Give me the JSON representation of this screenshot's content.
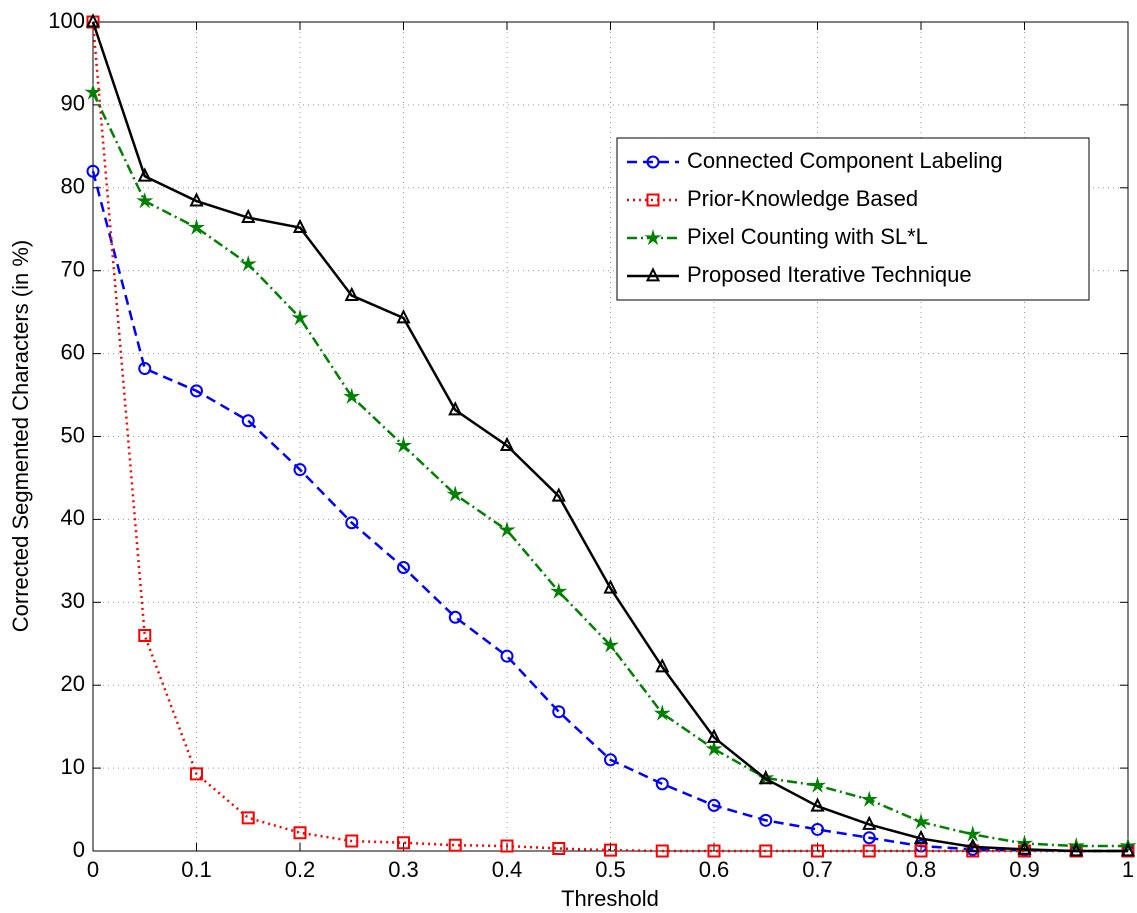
{
  "chart_data": {
    "type": "line",
    "xlabel": "Threshold",
    "ylabel": "Corrected Segmented Characters (in %)",
    "x": [
      0,
      0.05,
      0.1,
      0.15,
      0.2,
      0.25,
      0.3,
      0.35,
      0.4,
      0.45,
      0.5,
      0.55,
      0.6,
      0.65,
      0.7,
      0.75,
      0.8,
      0.85,
      0.9,
      0.95,
      1
    ],
    "series": [
      {
        "name": "Connected Component Labeling",
        "color": "#0000ff",
        "marker": "circle",
        "dash": "dashed",
        "values": [
          82,
          58.2,
          55.5,
          51.9,
          46,
          39.6,
          34.2,
          28.2,
          23.5,
          16.8,
          11,
          8.1,
          5.5,
          3.7,
          2.6,
          1.6,
          0.6,
          0.2,
          0.1,
          0,
          0
        ]
      },
      {
        "name": "Prior-Knowledge Based",
        "color": "#ff0000",
        "marker": "square",
        "dash": "dotted",
        "values": [
          100,
          26,
          9.3,
          4,
          2.2,
          1.2,
          1,
          0.7,
          0.6,
          0.3,
          0.1,
          0,
          0,
          0,
          0,
          0,
          0,
          0,
          0,
          0,
          0
        ]
      },
      {
        "name": "Pixel Counting with SL*L",
        "color": "#008000",
        "marker": "star",
        "dash": "dashdot",
        "values": [
          91.5,
          78.4,
          75.2,
          70.8,
          64.3,
          54.8,
          48.9,
          43,
          38.7,
          31.3,
          24.8,
          16.6,
          12.3,
          8.8,
          7.9,
          6.2,
          3.5,
          2,
          0.9,
          0.6,
          0.6
        ]
      },
      {
        "name": "Proposed Iterative Technique",
        "color": "#000000",
        "marker": "triangle",
        "dash": "solid",
        "values": [
          100,
          81.4,
          78.4,
          76.4,
          75.2,
          67,
          64.3,
          53.2,
          48.9,
          42.8,
          31.7,
          22.2,
          13.7,
          8.7,
          5.4,
          3.2,
          1.5,
          0.5,
          0.2,
          0,
          0
        ]
      }
    ],
    "xlim": [
      0,
      1
    ],
    "xticks": [
      0,
      0.1,
      0.2,
      0.3,
      0.4,
      0.5,
      0.6,
      0.7,
      0.8,
      0.9,
      1
    ],
    "ylim": [
      0,
      100
    ],
    "yticks": [
      0,
      10,
      20,
      30,
      40,
      50,
      60,
      70,
      80,
      90,
      100
    ],
    "grid": true,
    "legend": "northeast"
  }
}
